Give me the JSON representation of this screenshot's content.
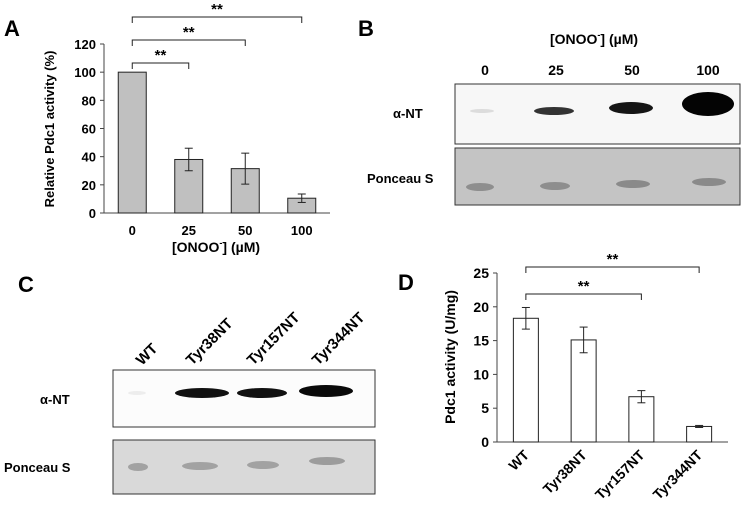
{
  "panels": {
    "a": {
      "letter": "A",
      "chart_data": {
        "type": "bar",
        "categories": [
          "0",
          "25",
          "50",
          "100"
        ],
        "values": [
          100,
          38,
          31.5,
          10.5
        ],
        "errors": [
          0,
          8,
          11,
          3
        ],
        "ylabel": "Relative Pdc1 activity (%)",
        "xlabel_main": "[ONOO",
        "xlabel_sup": "-",
        "xlabel_tail": "] (µM)",
        "ylim": [
          0,
          120
        ],
        "yticks": [
          "0",
          "20",
          "40",
          "60",
          "80",
          "100",
          "120"
        ],
        "bar_color": "#c0c0c0",
        "significance": [
          {
            "from": 0,
            "to": 1,
            "label": "**"
          },
          {
            "from": 0,
            "to": 2,
            "label": "**"
          },
          {
            "from": 0,
            "to": 3,
            "label": "**"
          }
        ]
      }
    },
    "b": {
      "letter": "B",
      "conc_main": "[ONOO",
      "conc_sup": "-",
      "conc_tail": "] (µM)",
      "lanes": [
        "0",
        "25",
        "50",
        "100"
      ],
      "blot1_label": "α-NT",
      "blot2_label": "Ponceau S"
    },
    "c": {
      "letter": "C",
      "lanes": [
        "WT",
        "Tyr38NT",
        "Tyr157NT",
        "Tyr344NT"
      ],
      "blot1_label": "α-NT",
      "blot2_label": "Ponceau S"
    },
    "d": {
      "letter": "D",
      "chart_data": {
        "type": "bar",
        "categories": [
          "WT",
          "Tyr38NT",
          "Tyr157NT",
          "Tyr344NT"
        ],
        "values": [
          18.3,
          15.1,
          6.7,
          2.3
        ],
        "errors": [
          1.6,
          1.9,
          0.9,
          0.15
        ],
        "ylabel": "Pdc1 activity (U/mg)",
        "ylim": [
          0,
          25
        ],
        "yticks": [
          "0",
          "5",
          "10",
          "15",
          "20",
          "25"
        ],
        "bar_color": "#ffffff",
        "significance": [
          {
            "from": 0,
            "to": 2,
            "label": "**"
          },
          {
            "from": 0,
            "to": 3,
            "label": "**"
          }
        ]
      }
    }
  }
}
